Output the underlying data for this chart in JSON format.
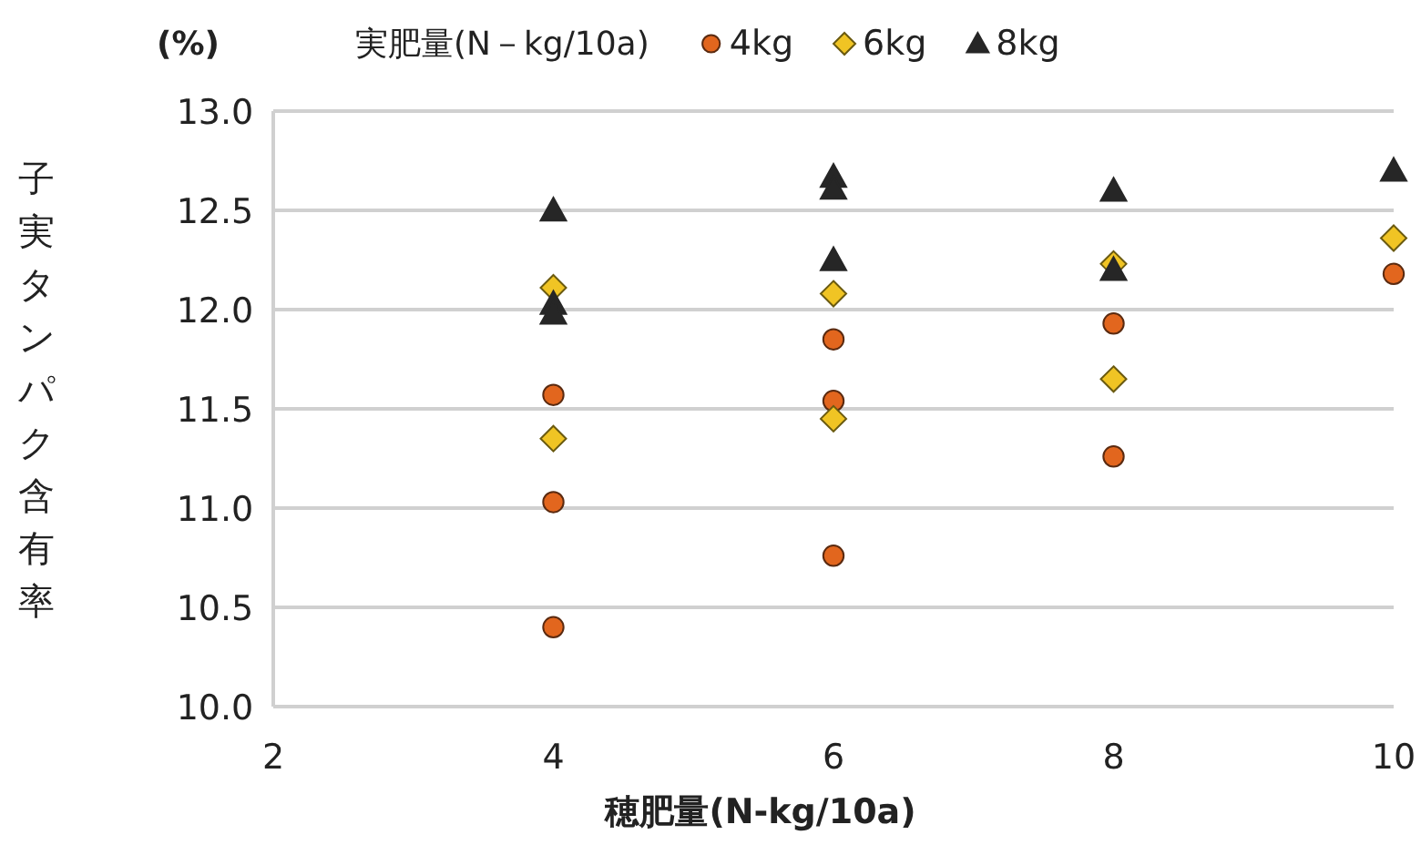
{
  "chart_data": {
    "type": "scatter",
    "xlabel": "穂肥量(N-kg/10a)",
    "ylabel": "子実タンパク含有率",
    "legend_title": "実肥量(N－kg/10a)",
    "annotations": [
      "(%)"
    ],
    "xlim": [
      2,
      10
    ],
    "xticks": [
      2,
      4,
      6,
      8,
      10
    ],
    "ylim": [
      10.0,
      13.0
    ],
    "yticks": [
      {
        "value": 10,
        "label": "10.0"
      },
      {
        "value": 10.5,
        "label": "10.5"
      },
      {
        "value": 11,
        "label": "11.0"
      },
      {
        "value": 11.5,
        "label": "11.5"
      },
      {
        "value": 12,
        "label": "12.0"
      },
      {
        "value": 12.5,
        "label": "12.5"
      },
      {
        "value": 13,
        "label": "13.0"
      }
    ],
    "grid": "y",
    "legend": "top",
    "series": [
      {
        "name": "4kg",
        "color": "#e2661e",
        "marker": "circle",
        "x": [
          4,
          4,
          4,
          6,
          6,
          6,
          8,
          8,
          10
        ],
        "values": [
          11.57,
          11.03,
          10.4,
          11.85,
          11.54,
          10.76,
          11.93,
          11.26,
          12.18
        ]
      },
      {
        "name": "6kg",
        "color": "#f0c424",
        "marker": "diamond",
        "x": [
          4,
          4,
          6,
          6,
          8,
          8,
          10
        ],
        "values": [
          12.11,
          11.35,
          12.08,
          11.45,
          12.23,
          11.65,
          12.36
        ]
      },
      {
        "name": "8kg",
        "color": "#262626",
        "marker": "triangle",
        "x": [
          4,
          4,
          4,
          6,
          6,
          6,
          8,
          8,
          10
        ],
        "values": [
          12.5,
          12.03,
          11.98,
          12.67,
          12.61,
          12.25,
          12.6,
          12.2,
          12.7
        ]
      }
    ]
  }
}
